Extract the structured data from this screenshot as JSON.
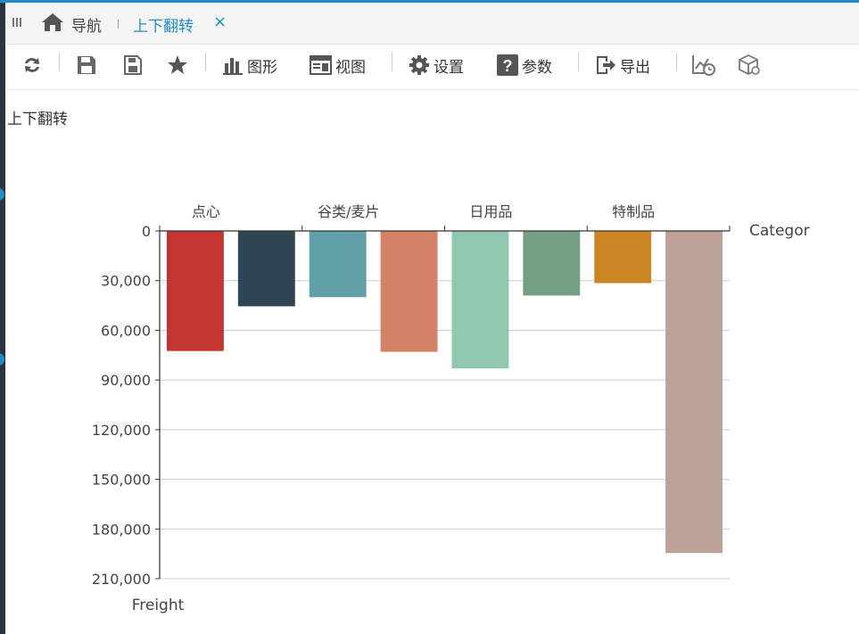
{
  "tabs": {
    "nav_label": "导航",
    "active_label": "上下翻转",
    "close_glyph": "×"
  },
  "toolbar": {
    "chart_label": "图形",
    "view_label": "视图",
    "settings_label": "设置",
    "params_label": "参数",
    "export_label": "导出"
  },
  "icons": {
    "menu": "grip-icon",
    "home": "home-icon",
    "close": "close-icon",
    "refresh": "refresh-icon",
    "save": "save-icon",
    "save_as": "save-as-icon",
    "favorite": "star-icon",
    "chart": "bar-chart-icon",
    "view": "view-icon",
    "settings": "gear-icon",
    "params": "question-icon",
    "export": "export-icon",
    "schedule": "chart-clock-icon",
    "cube": "cube-icon"
  },
  "report": {
    "title": "上下翻转"
  },
  "chart_data": {
    "type": "bar",
    "orientation": "vertical-inverted",
    "x_axis_position": "top",
    "category_labels": [
      "点心",
      "谷类/麦片",
      "日用品",
      "特制品"
    ],
    "xlabel": "Categor",
    "ylabel": "Freight",
    "ylim": [
      0,
      210000
    ],
    "yticks": [
      0,
      30000,
      60000,
      90000,
      120000,
      150000,
      180000,
      210000
    ],
    "grid": true,
    "values": [
      72500,
      45500,
      40000,
      73000,
      83000,
      39000,
      31500,
      194500
    ],
    "bar_colors": [
      "#c23531",
      "#2f4554",
      "#61a0a8",
      "#d48265",
      "#91c7ae",
      "#749f83",
      "#ca8622",
      "#bda29a"
    ]
  }
}
